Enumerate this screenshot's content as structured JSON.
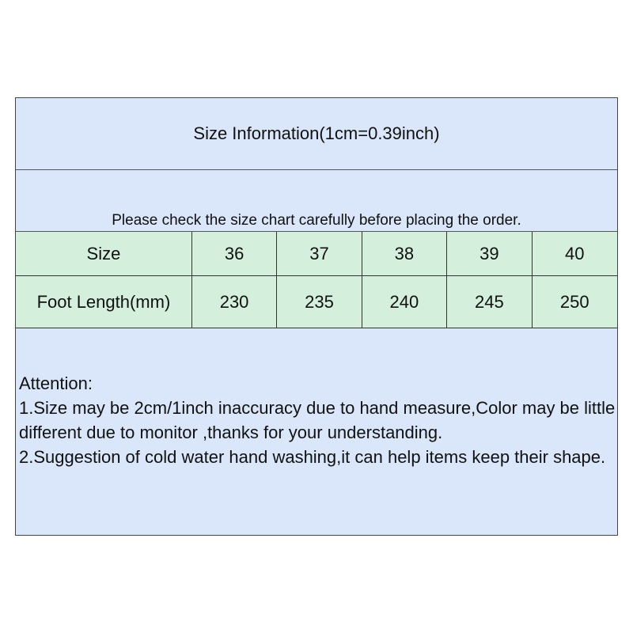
{
  "title": "Size Information(1cm=0.39inch)",
  "notice": "Please check the size chart carefully before placing the order.",
  "table": {
    "rows": [
      {
        "label": "Size",
        "values": [
          "36",
          "37",
          "38",
          "39",
          "40"
        ]
      },
      {
        "label": "Foot Length(mm)",
        "values": [
          "230",
          "235",
          "240",
          "245",
          "250"
        ]
      }
    ]
  },
  "attention": {
    "heading": "Attention:",
    "line1": "1.Size may be 2cm/1inch inaccuracy due to hand measure,Color may be little different due to monitor ,thanks for your understanding.",
    "line2": "2.Suggestion of cold water hand washing,it can help items keep their shape."
  },
  "colors": {
    "blue": "#dae6f9",
    "green": "#d4efdc"
  }
}
